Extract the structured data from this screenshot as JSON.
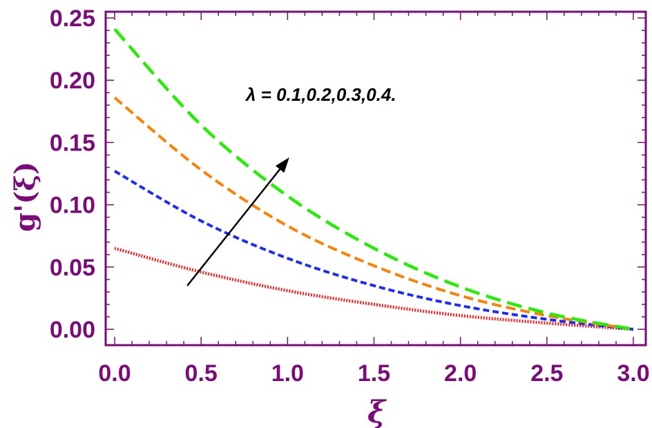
{
  "chart_data": {
    "type": "line",
    "title": "",
    "xlabel": "ξ",
    "ylabel": "g'(ξ)",
    "xlim": [
      0.0,
      3.0
    ],
    "ylim": [
      0.0,
      0.25
    ],
    "xticks": [
      "0.0",
      "0.5",
      "1.0",
      "1.5",
      "2.0",
      "2.5",
      "3.0"
    ],
    "yticks": [
      "0.00",
      "0.05",
      "0.10",
      "0.15",
      "0.20",
      "0.25"
    ],
    "annotation": "λ = 0.1,0.2,0.3,0.4.",
    "arrow": {
      "from": [
        0.42,
        0.035
      ],
      "to": [
        1.01,
        0.138
      ]
    },
    "series": [
      {
        "x": [
          0.0,
          0.5,
          1.0,
          1.5,
          2.0,
          2.5,
          3.0
        ],
        "values": [
          0.065,
          0.046,
          0.031,
          0.02,
          0.011,
          0.005,
          0.0
        ],
        "color": "#ff1a1a",
        "dash": "dotted"
      },
      {
        "x": [
          0.0,
          0.5,
          1.0,
          1.5,
          2.0,
          2.5,
          3.0
        ],
        "values": [
          0.127,
          0.087,
          0.057,
          0.035,
          0.019,
          0.008,
          0.0
        ],
        "color": "#1a2bff",
        "dash": "short-dash"
      },
      {
        "x": [
          0.0,
          0.5,
          1.0,
          1.5,
          2.0,
          2.5,
          3.0
        ],
        "values": [
          0.186,
          0.128,
          0.083,
          0.051,
          0.027,
          0.011,
          0.0
        ],
        "color": "#ff8000",
        "dash": "dash"
      },
      {
        "x": [
          0.0,
          0.5,
          1.0,
          1.5,
          2.0,
          2.5,
          3.0
        ],
        "values": [
          0.241,
          0.164,
          0.107,
          0.065,
          0.034,
          0.013,
          0.0
        ],
        "color": "#22ee00",
        "dash": "long-dash"
      }
    ],
    "axis_color": "#7b0a7b",
    "grid": false
  }
}
